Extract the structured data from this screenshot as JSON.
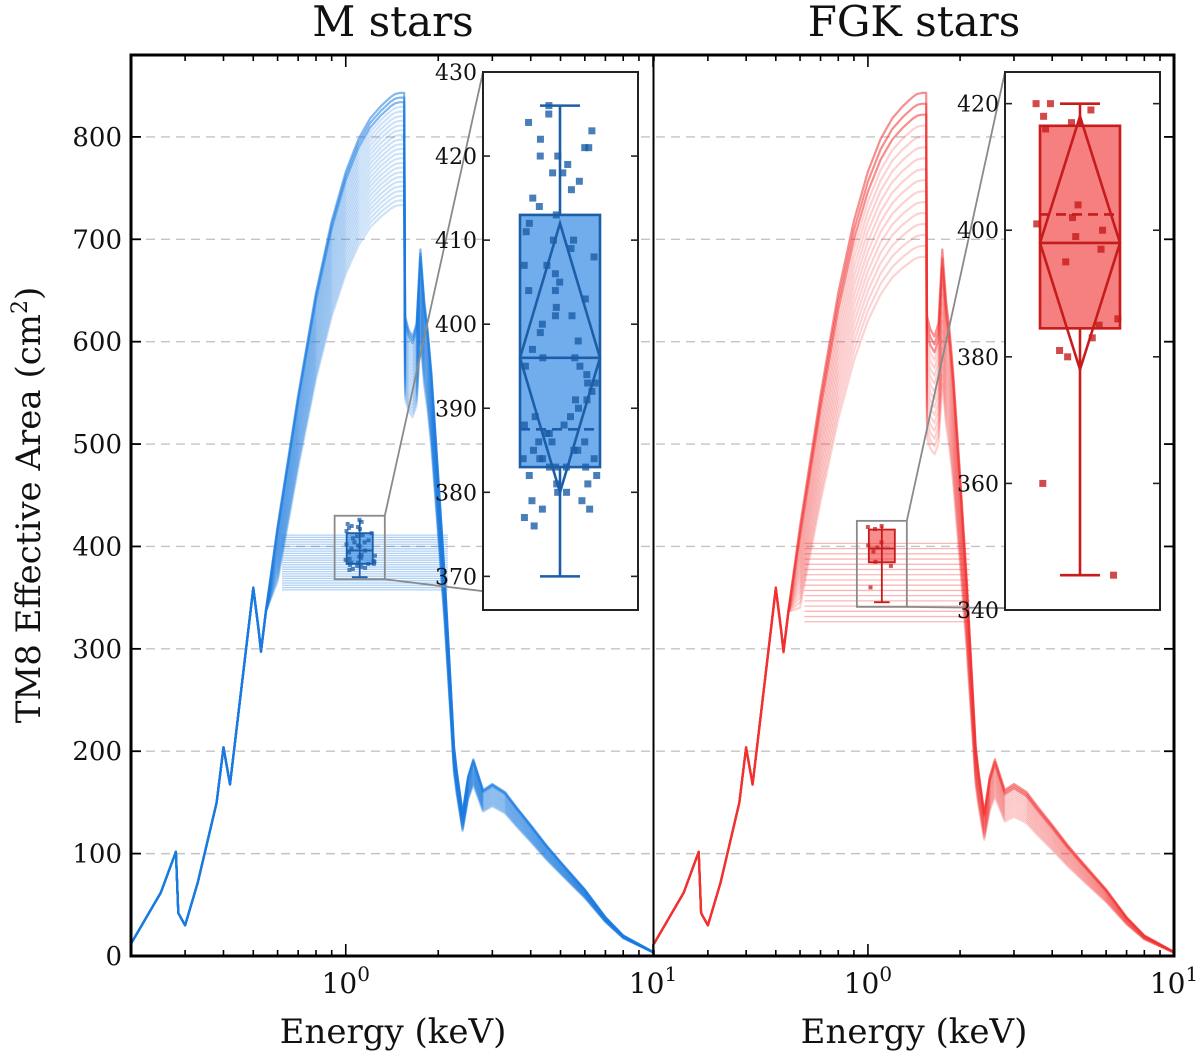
{
  "chart_data": {
    "type": "line",
    "ylabel": "TM8 Effective Area (cm²)",
    "ylabel_base": "TM8 Effective Area (cm",
    "ylabel_sup": "2",
    "ylabel_close": ")",
    "xscale": "log",
    "xlim": [
      0.2,
      10
    ],
    "ylim": [
      0,
      880
    ],
    "y_ticks": [
      0,
      100,
      200,
      300,
      400,
      500,
      600,
      700,
      800
    ],
    "x_tick_label_main": "10",
    "x_tick_labels": [
      {
        "value": 1,
        "exp": "0"
      },
      {
        "value": 10,
        "exp": "1"
      }
    ],
    "grid": "horizontal dashed",
    "panels": [
      {
        "title": "M stars",
        "xlabel": "Energy (keV)",
        "color": "#1a7ae0",
        "dark_color": "#1c5ea8",
        "n_curves": 25,
        "curve_scale_range": [
          0.87,
          1.0
        ],
        "template_curve": {
          "energy_keV": [
            0.2,
            0.25,
            0.28,
            0.285,
            0.3,
            0.33,
            0.38,
            0.4,
            0.42,
            0.5,
            0.52,
            0.53,
            0.55,
            0.6,
            0.7,
            0.8,
            0.9,
            1.0,
            1.1,
            1.2,
            1.3,
            1.4,
            1.45,
            1.5,
            1.55,
            1.56,
            1.6,
            1.65,
            1.7,
            1.75,
            1.8,
            1.85,
            1.9,
            2.0,
            2.1,
            2.2,
            2.25,
            2.3,
            2.4,
            2.5,
            2.6,
            2.8,
            3.0,
            3.3,
            3.6,
            4.0,
            4.5,
            5.0,
            6.0,
            7.0,
            8.0,
            10.0
          ],
          "area_cm2": [
            12,
            62,
            102,
            42,
            30,
            72,
            150,
            204,
            168,
            360,
            320,
            298,
            338,
            420,
            548,
            648,
            718,
            766,
            798,
            818,
            830,
            839,
            842,
            843,
            843,
            625,
            612,
            605,
            618,
            690,
            640,
            610,
            570,
            470,
            370,
            260,
            205,
            180,
            140,
            175,
            192,
            162,
            168,
            160,
            145,
            128,
            108,
            92,
            65,
            38,
            20,
            4
          ]
        },
        "inset": {
          "yrange": [
            366,
            430
          ],
          "y_ticks": [
            370,
            380,
            390,
            400,
            410,
            420,
            430
          ],
          "box": {
            "q1": 383,
            "median": 396,
            "mean": 387.5,
            "q3": 413,
            "whisker_low": 370,
            "whisker_high": 426,
            "notch_low": 380,
            "notch_high": 412
          },
          "points": [
            426,
            425,
            424,
            423,
            422,
            421,
            420,
            420,
            419,
            418,
            417,
            416,
            415,
            414,
            413,
            412,
            411,
            410,
            410,
            409,
            408,
            407,
            406,
            405,
            404,
            403,
            402,
            401,
            400,
            399,
            398,
            397,
            396,
            395,
            394,
            393,
            392,
            391,
            390,
            389,
            388,
            388,
            387,
            387,
            386,
            386,
            385,
            385,
            384,
            384,
            384,
            383,
            383,
            383,
            382,
            382,
            381,
            381,
            380,
            380,
            379,
            379,
            378,
            378,
            377,
            376,
            391,
            396,
            401,
            393,
            384,
            386,
            389,
            395,
            404,
            407,
            418,
            421,
            383,
            385
          ]
        }
      },
      {
        "title": "FGK stars",
        "xlabel": "Energy (keV)",
        "color": "#f03030",
        "dark_color": "#c61c1c",
        "n_curves": 16,
        "curve_scale_range": [
          0.81,
          1.0
        ],
        "template_curve": {
          "energy_keV": [
            0.2,
            0.25,
            0.28,
            0.285,
            0.3,
            0.33,
            0.38,
            0.4,
            0.42,
            0.5,
            0.52,
            0.53,
            0.55,
            0.6,
            0.7,
            0.8,
            0.9,
            1.0,
            1.1,
            1.2,
            1.3,
            1.4,
            1.45,
            1.5,
            1.55,
            1.56,
            1.6,
            1.65,
            1.7,
            1.75,
            1.8,
            1.85,
            1.9,
            2.0,
            2.1,
            2.2,
            2.25,
            2.3,
            2.4,
            2.5,
            2.6,
            2.8,
            3.0,
            3.3,
            3.6,
            4.0,
            4.5,
            5.0,
            6.0,
            7.0,
            8.0,
            10.0
          ],
          "area_cm2": [
            12,
            62,
            102,
            42,
            30,
            72,
            150,
            204,
            168,
            360,
            320,
            298,
            338,
            420,
            548,
            648,
            718,
            766,
            798,
            818,
            830,
            839,
            842,
            843,
            843,
            625,
            612,
            605,
            618,
            690,
            640,
            610,
            570,
            470,
            370,
            260,
            205,
            180,
            140,
            175,
            192,
            162,
            168,
            160,
            145,
            128,
            108,
            92,
            65,
            38,
            20,
            4
          ]
        },
        "inset": {
          "yrange": [
            340,
            425
          ],
          "y_ticks": [
            340,
            360,
            380,
            400,
            420
          ],
          "box": {
            "q1": 384.5,
            "median": 398,
            "mean": 402.5,
            "q3": 416.5,
            "whisker_low": 345.5,
            "whisker_high": 420,
            "notch_low": 378,
            "notch_high": 418
          },
          "points": [
            420,
            420,
            419,
            418,
            417,
            416,
            404,
            402,
            401,
            400,
            399,
            397,
            395,
            386,
            385,
            383,
            381,
            380,
            360,
            345.5
          ]
        }
      }
    ]
  }
}
